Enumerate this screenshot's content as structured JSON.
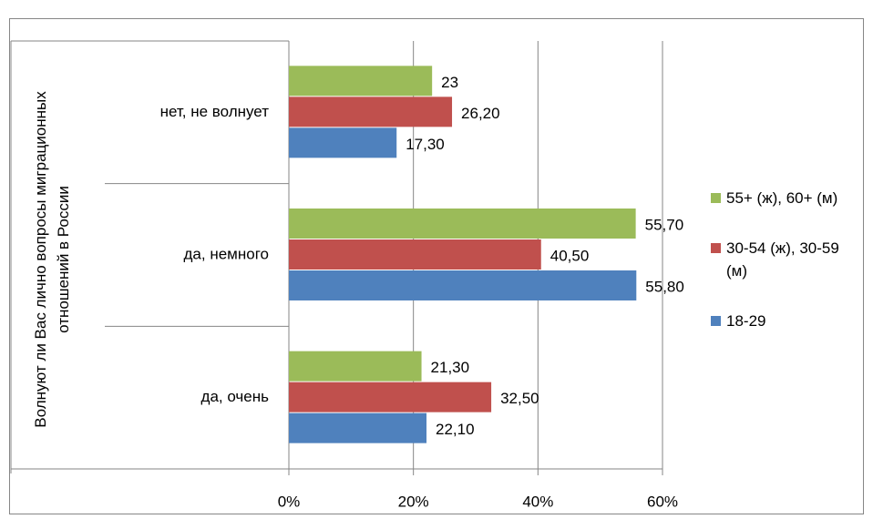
{
  "chart_data": {
    "type": "bar",
    "orientation": "horizontal",
    "axis_title": "Волнуют ли Вас лично вопросы миграционных отношений в России",
    "categories": [
      "нет, не волнует",
      "да, немного",
      "да, очень"
    ],
    "series": [
      {
        "name": "55+ (ж), 60+ (м)",
        "color": "#9bbb59",
        "values": [
          23,
          55.7,
          21.3
        ],
        "value_labels": [
          "23",
          "55,70",
          "21,30"
        ]
      },
      {
        "name": "30-54 (ж), 30-59 (м)",
        "color": "#c0504d",
        "values": [
          26.2,
          40.5,
          32.5
        ],
        "value_labels": [
          "26,20",
          "40,50",
          "32,50"
        ]
      },
      {
        "name": "18-29",
        "color": "#4f81bd",
        "values": [
          17.3,
          55.8,
          22.1
        ],
        "value_labels": [
          "17,30",
          "55,80",
          "22,10"
        ]
      }
    ],
    "xlim": [
      0,
      60
    ],
    "xticks": [
      {
        "value": 0,
        "label": "0%"
      },
      {
        "value": 20,
        "label": "20%"
      },
      {
        "value": 40,
        "label": "40%"
      },
      {
        "value": 60,
        "label": "60%"
      }
    ],
    "grid": true,
    "legend": "right"
  }
}
